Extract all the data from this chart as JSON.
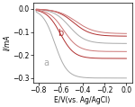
{
  "title": "",
  "xlabel": "E/V(vs. Ag/AgCl)",
  "ylabel": "I/mA",
  "xlim": [
    -0.85,
    0.05
  ],
  "ylim": [
    -0.32,
    0.025
  ],
  "xticks": [
    -0.8,
    -0.6,
    -0.4,
    -0.2,
    0.0
  ],
  "yticks": [
    0.0,
    -0.1,
    -0.2,
    -0.3
  ],
  "curve_a_color": "#aaaaaa",
  "curve_b_color": "#b03030",
  "curve_c_color": "#cc7777",
  "label_a": "a",
  "label_b": "b",
  "font_size": 7
}
